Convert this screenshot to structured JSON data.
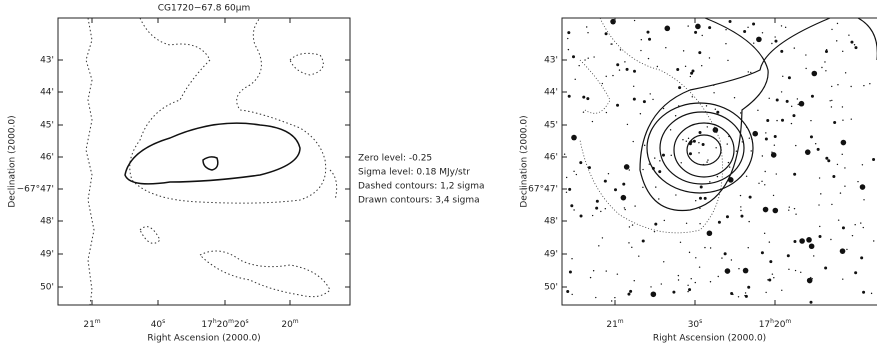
{
  "left_panel": {
    "title": "CG1720−67.8 60μm",
    "yticks": [
      "43'",
      "44'",
      "45'",
      "46'",
      "−67°47'",
      "48'",
      "49'",
      "50'"
    ],
    "xticks": [
      [
        "21",
        "m"
      ],
      [
        "40",
        "s"
      ],
      [
        "17",
        "h",
        "20",
        "m",
        "20",
        "s"
      ],
      [
        "20",
        "m"
      ]
    ],
    "xlabel": "Right Ascension (2000.0)",
    "ylabel": "Declination (2000.0)"
  },
  "annotations": [
    "Zero level: -0.25",
    "Sigma level: 0.18 MJy/str",
    "Dashed contours: 1,2 sigma",
    "Drawn contours: 3,4 sigma"
  ],
  "right_panel": {
    "yticks": [
      "43'",
      "44'",
      "45'",
      "46'",
      "−67°47'",
      "48'",
      "49'",
      "50'"
    ],
    "xticks": [
      [
        "21",
        "m"
      ],
      [
        "30",
        "s"
      ],
      [
        "17",
        "h",
        "20",
        "m"
      ]
    ],
    "xlabel": "Right Ascension (2000.0)",
    "ylabel": "Declination (2000.0)"
  }
}
